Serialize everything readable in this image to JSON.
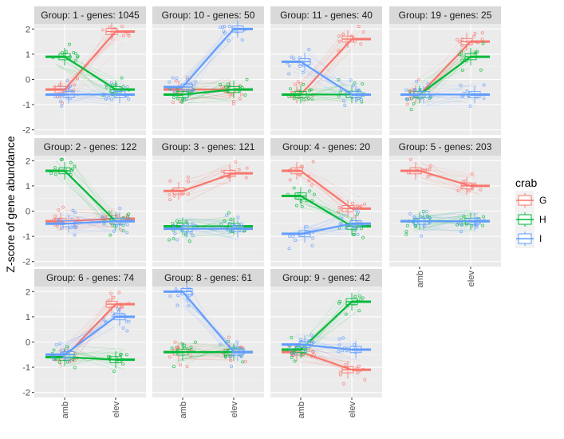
{
  "chart_data": {
    "type": "line",
    "ylabel": "Z-score of gene abundance",
    "xlabel": "",
    "x_categories": [
      "amb",
      "elev"
    ],
    "ylim": [
      -2.2,
      2.2
    ],
    "y_ticks": [
      "-2",
      "-1",
      "0",
      "1",
      "2"
    ],
    "grid": true,
    "legend": {
      "title": "crab",
      "position": "right",
      "entries": [
        {
          "label": "G",
          "color": "#F8766D"
        },
        {
          "label": "H",
          "color": "#00BA38"
        },
        {
          "label": "I",
          "color": "#619CFF"
        }
      ]
    },
    "facets": [
      {
        "label": "Group:  1 - genes: 1045",
        "series": [
          {
            "name": "G",
            "values": [
              -0.4,
              1.9
            ]
          },
          {
            "name": "H",
            "values": [
              0.9,
              -0.4
            ]
          },
          {
            "name": "I",
            "values": [
              -0.6,
              -0.6
            ]
          }
        ]
      },
      {
        "label": "Group:  10 - genes: 50",
        "series": [
          {
            "name": "G",
            "values": [
              -0.4,
              -0.4
            ]
          },
          {
            "name": "H",
            "values": [
              -0.6,
              -0.4
            ]
          },
          {
            "name": "I",
            "values": [
              -0.3,
              2.0
            ]
          }
        ]
      },
      {
        "label": "Group:  11 - genes: 40",
        "series": [
          {
            "name": "G",
            "values": [
              -0.6,
              1.6
            ]
          },
          {
            "name": "H",
            "values": [
              -0.6,
              -0.6
            ]
          },
          {
            "name": "I",
            "values": [
              0.7,
              -0.6
            ]
          }
        ]
      },
      {
        "label": "Group:  19 - genes: 25",
        "series": [
          {
            "name": "G",
            "values": [
              -0.6,
              1.5
            ]
          },
          {
            "name": "H",
            "values": [
              -0.6,
              0.9
            ]
          },
          {
            "name": "I",
            "values": [
              -0.6,
              -0.6
            ]
          }
        ]
      },
      {
        "label": "Group:  2 - genes: 122",
        "series": [
          {
            "name": "G",
            "values": [
              -0.4,
              -0.3
            ]
          },
          {
            "name": "H",
            "values": [
              1.6,
              -0.4
            ]
          },
          {
            "name": "I",
            "values": [
              -0.5,
              -0.4
            ]
          }
        ]
      },
      {
        "label": "Group:  3 - genes: 121",
        "series": [
          {
            "name": "G",
            "values": [
              0.8,
              1.5
            ]
          },
          {
            "name": "H",
            "values": [
              -0.6,
              -0.6
            ]
          },
          {
            "name": "I",
            "values": [
              -0.7,
              -0.7
            ]
          }
        ]
      },
      {
        "label": "Group:  4 - genes: 20",
        "series": [
          {
            "name": "G",
            "values": [
              1.6,
              0.1
            ]
          },
          {
            "name": "H",
            "values": [
              0.6,
              -0.6
            ]
          },
          {
            "name": "I",
            "values": [
              -0.9,
              -0.5
            ]
          }
        ]
      },
      {
        "label": "Group:  5 - genes: 203",
        "series": [
          {
            "name": "G",
            "values": [
              1.6,
              1.0
            ]
          },
          {
            "name": "H",
            "values": [
              -0.4,
              -0.4
            ]
          },
          {
            "name": "I",
            "values": [
              -0.4,
              -0.4
            ]
          }
        ]
      },
      {
        "label": "Group:  6 - genes: 74",
        "series": [
          {
            "name": "G",
            "values": [
              -0.6,
              1.5
            ]
          },
          {
            "name": "H",
            "values": [
              -0.6,
              -0.7
            ]
          },
          {
            "name": "I",
            "values": [
              -0.5,
              1.0
            ]
          }
        ]
      },
      {
        "label": "Group:  8 - genes: 61",
        "series": [
          {
            "name": "G",
            "values": [
              -0.4,
              -0.4
            ]
          },
          {
            "name": "H",
            "values": [
              -0.4,
              -0.4
            ]
          },
          {
            "name": "I",
            "values": [
              2.0,
              -0.4
            ]
          }
        ]
      },
      {
        "label": "Group:  9 - genes: 42",
        "series": [
          {
            "name": "G",
            "values": [
              -0.4,
              -1.1
            ]
          },
          {
            "name": "H",
            "values": [
              -0.3,
              1.6
            ]
          },
          {
            "name": "I",
            "values": [
              -0.1,
              -0.3
            ]
          }
        ]
      }
    ]
  }
}
